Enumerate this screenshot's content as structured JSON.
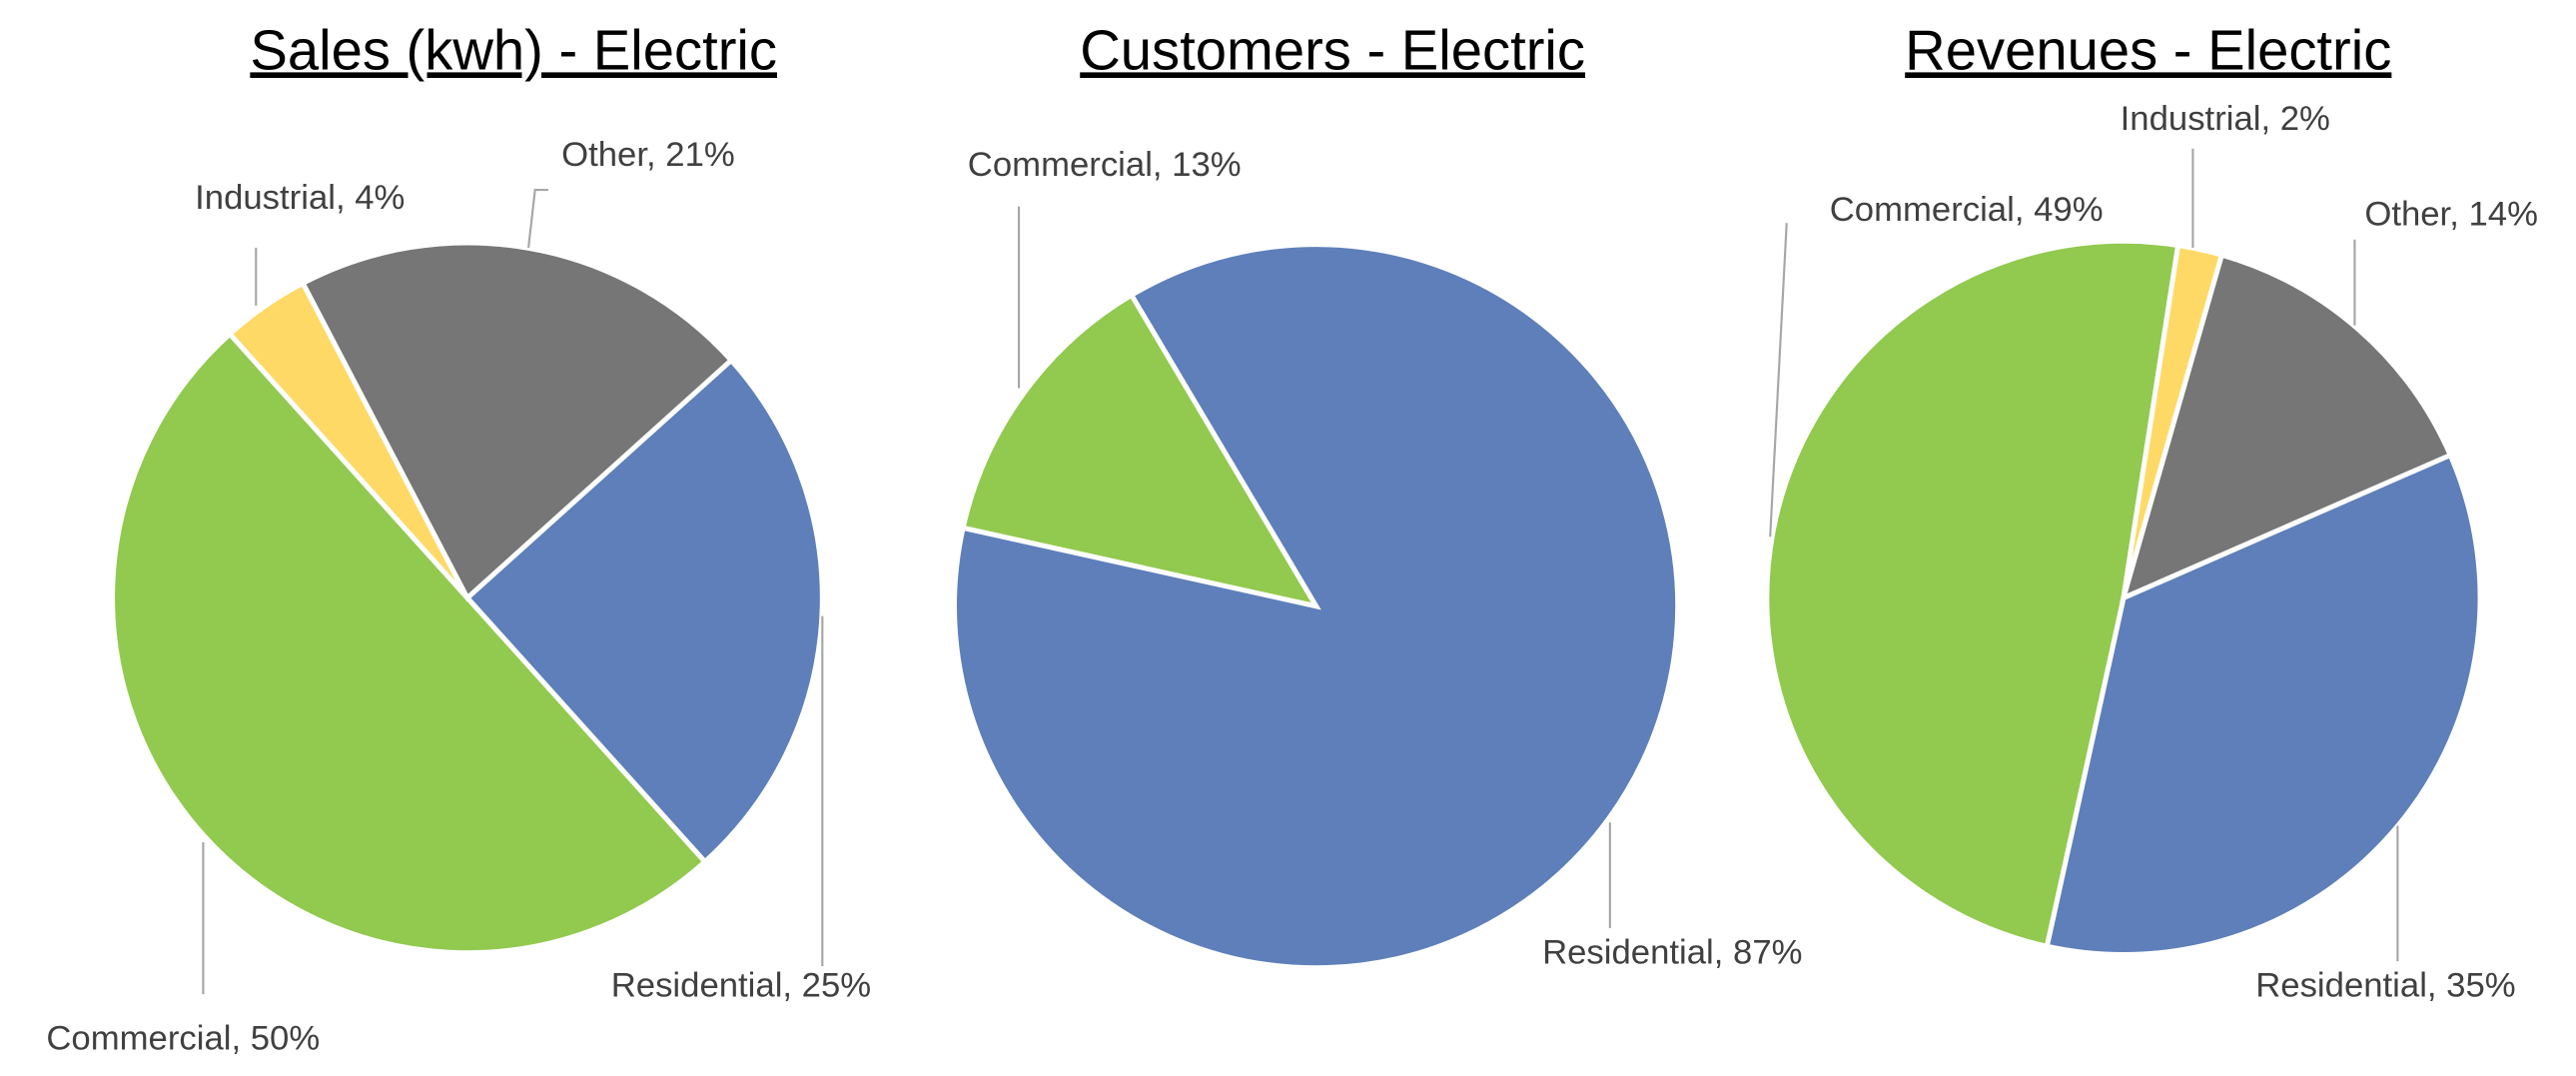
{
  "chart_data": [
    {
      "type": "pie",
      "title": "Sales (kwh) - Electric",
      "start_angle": 48,
      "values": [
        25,
        50,
        4,
        21
      ],
      "value_labels": [
        "Residential, 25%",
        "Commercial, 50%",
        "Industrial, 4%",
        "Other, 21%"
      ],
      "colors": [
        "#5e7fba",
        "#92c94f",
        "#ffd966",
        "#767676"
      ]
    },
    {
      "type": "pie",
      "title": "Customers - Electric",
      "start_angle": 329.3,
      "values": [
        87,
        13
      ],
      "value_labels": [
        "Residential, 87%",
        "Commercial, 13%"
      ],
      "colors": [
        "#5e7fba",
        "#92c94f"
      ]
    },
    {
      "type": "pie",
      "title": "Revenues - Electric",
      "start_angle": 66.4,
      "values": [
        35,
        49,
        2,
        14
      ],
      "value_labels": [
        "Residential, 35%",
        "Commercial, 49%",
        "Industrial, 2%",
        "Other, 14%"
      ],
      "colors": [
        "#5e7fba",
        "#92c94f",
        "#ffd966",
        "#767676"
      ]
    }
  ]
}
